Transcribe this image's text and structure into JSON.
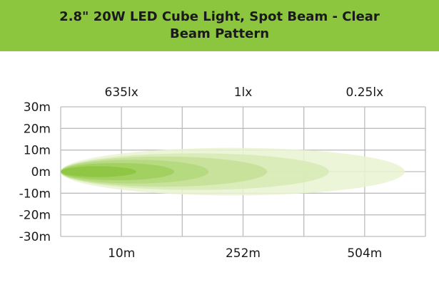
{
  "chart_data": {
    "type": "area",
    "title": "2.8\" 20W LED Cube Light, Spot Beam - Clear",
    "subtitle": "Beam Pattern",
    "y_ticks": [
      "30m",
      "20m",
      "10m",
      "0m",
      "-10m",
      "-20m",
      "-30m"
    ],
    "ylim": [
      -30,
      30
    ],
    "x_ticks": [
      "10m",
      "252m",
      "504m"
    ],
    "lux_labels": [
      "635lx",
      "1lx",
      "0.25lx"
    ],
    "grid": true,
    "colors": {
      "banner": "#8cc63f",
      "grid": "#bdbdbd",
      "beam_outer": "#eaf3d2",
      "beam_inner": "#8cc63f"
    },
    "beam_layers": [
      {
        "reach": 1.0,
        "half_width": 11
      },
      {
        "reach": 0.78,
        "half_width": 8.5
      },
      {
        "reach": 0.6,
        "half_width": 7
      },
      {
        "reach": 0.43,
        "half_width": 5.5
      },
      {
        "reach": 0.33,
        "half_width": 4
      },
      {
        "reach": 0.22,
        "half_width": 2.5
      }
    ]
  }
}
